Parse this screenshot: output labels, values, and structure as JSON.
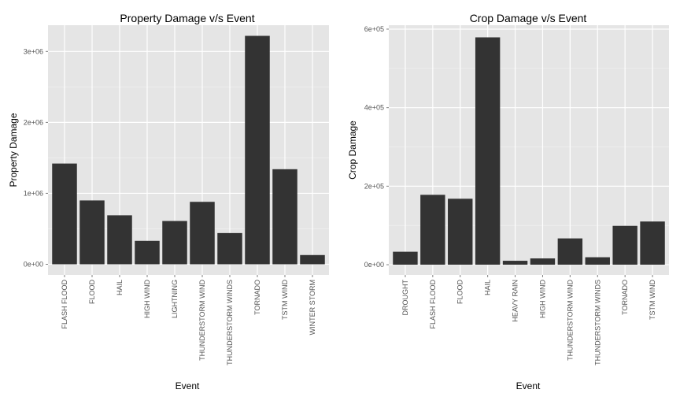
{
  "colors": {
    "panel_bg": "#e5e5e5",
    "grid_major": "#ffffff",
    "grid_minor": "#f2f2f2",
    "bar": "#333333",
    "tick_text": "#555555",
    "title_text": "#000000"
  },
  "chart_data": [
    {
      "type": "bar",
      "title": "Property Damage v/s Event",
      "xlabel": "Event",
      "ylabel": "Property Damage",
      "categories": [
        "FLASH FLOOD",
        "FLOOD",
        "HAIL",
        "HIGH WIND",
        "LIGHTNING",
        "THUNDERSTORM WIND",
        "THUNDERSTORM WINDS",
        "TORNADO",
        "TSTM WIND",
        "WINTER STORM"
      ],
      "values": [
        1420000,
        900000,
        690000,
        330000,
        610000,
        880000,
        440000,
        3220000,
        1340000,
        130000
      ],
      "ylim": [
        -150000,
        3370000
      ],
      "yticks": [
        0,
        1000000,
        2000000,
        3000000
      ],
      "ytick_labels": [
        "0e+00",
        "1e+06",
        "2e+06",
        "3e+06"
      ],
      "grid": true
    },
    {
      "type": "bar",
      "title": "Crop Damage v/s Event",
      "xlabel": "Event",
      "ylabel": "Crop Damage",
      "categories": [
        "DROUGHT",
        "FLASH FLOOD",
        "FLOOD",
        "HAIL",
        "HEAVY RAIN",
        "HIGH WIND",
        "THUNDERSTORM WIND",
        "THUNDERSTORM WINDS",
        "TORNADO",
        "TSTM WIND"
      ],
      "values": [
        33000,
        178000,
        168000,
        579000,
        10000,
        16000,
        67000,
        19000,
        99000,
        110000
      ],
      "ylim": [
        -26000,
        610000
      ],
      "yticks": [
        0,
        200000,
        400000,
        600000
      ],
      "ytick_labels": [
        "0e+00",
        "2e+05",
        "4e+05",
        "6e+05"
      ],
      "grid": true
    }
  ]
}
